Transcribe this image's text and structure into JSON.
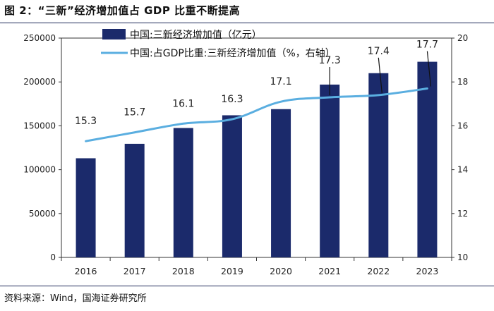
{
  "title": "图 2：“三新”经济增加值占 GDP 比重不断提高",
  "source": "资料来源：Wind，国海证券研究所",
  "chart_data": {
    "type": "bar",
    "categories": [
      "2016",
      "2017",
      "2018",
      "2019",
      "2020",
      "2021",
      "2022",
      "2023"
    ],
    "series": [
      {
        "name": "中国:三新经济增加值（亿元）",
        "type": "bar",
        "axis": "left",
        "color": "#1b2a6b",
        "values": [
          113000,
          129500,
          147500,
          162000,
          169000,
          197000,
          210000,
          223000
        ]
      },
      {
        "name": "中国:占GDP比重:三新经济增加值（%，右轴）",
        "type": "line",
        "axis": "right",
        "color": "#5aaee0",
        "values": [
          15.3,
          15.7,
          16.1,
          16.3,
          17.1,
          17.3,
          17.4,
          17.7
        ]
      }
    ],
    "data_labels": [
      "15.3",
      "15.7",
      "16.1",
      "16.3",
      "17.1",
      "17.3",
      "17.4",
      "17.7"
    ],
    "y_left": {
      "ylim": [
        0,
        250000
      ],
      "ticks": [
        "0",
        "50000",
        "100000",
        "150000",
        "200000",
        "250000"
      ]
    },
    "y_right": {
      "ylim": [
        10,
        20
      ],
      "ticks": [
        "10",
        "12",
        "14",
        "16",
        "18",
        "20"
      ]
    },
    "grid": false,
    "legend_position": "top-left"
  }
}
